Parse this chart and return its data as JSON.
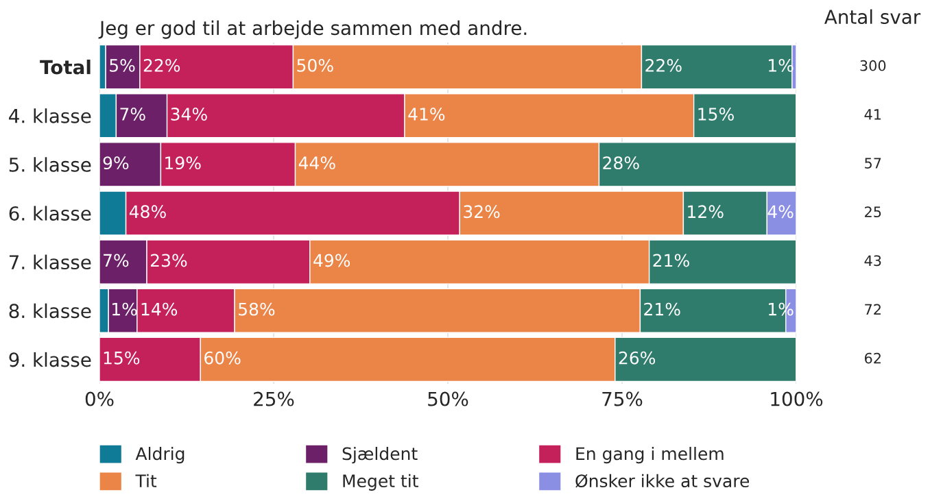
{
  "chart_data": {
    "type": "bar",
    "orientation": "horizontal",
    "stacked": true,
    "title": "Jeg er god til at arbejde sammen med andre.",
    "categories": [
      "Total",
      "4. klasse",
      "5. klasse",
      "6. klasse",
      "7. klasse",
      "8. klasse",
      "9. klasse"
    ],
    "series": [
      {
        "name": "Aldrig",
        "color": "#0f7b96",
        "values": [
          0.9,
          2.4,
          null,
          3.8,
          null,
          1.3,
          null
        ],
        "value_labels": [
          null,
          null,
          null,
          null,
          null,
          "1%",
          null
        ]
      },
      {
        "name": "Sjældent",
        "color": "#6b2067",
        "values": [
          4.9,
          7.3,
          8.8,
          null,
          6.8,
          4.1,
          null
        ],
        "value_labels": [
          "5%",
          "7%",
          "9%",
          null,
          "7%",
          null,
          null
        ]
      },
      {
        "name": "En gang i mellem",
        "color": "#c4205a",
        "values": [
          22,
          34.1,
          19.3,
          47.9,
          23.4,
          14,
          14.5
        ],
        "value_labels": [
          "22%",
          "34%",
          "19%",
          "48%",
          "23%",
          "14%",
          "15%"
        ]
      },
      {
        "name": "Tit",
        "color": "#eb8447",
        "values": [
          50,
          41.5,
          43.6,
          32.1,
          48.7,
          58.2,
          59.5
        ],
        "value_labels": [
          "50%",
          "41%",
          "44%",
          "32%",
          "49%",
          "58%",
          "60%"
        ]
      },
      {
        "name": "Meget tit",
        "color": "#2f7b6c",
        "values": [
          21.6,
          14.7,
          28.3,
          12,
          21.1,
          20.9,
          26
        ],
        "value_labels": [
          "22%",
          "15%",
          "28%",
          "12%",
          "21%",
          "21%",
          "26%"
        ]
      },
      {
        "name": "Ønsker ikke at svare",
        "color": "#8b8fe3",
        "values": [
          0.6,
          null,
          null,
          4.2,
          null,
          1.5,
          null
        ],
        "value_labels": [
          "1%",
          null,
          null,
          "4%",
          null,
          "1%",
          null
        ]
      }
    ],
    "xlim": [
      0,
      100
    ],
    "xticks": [
      {
        "value": 0,
        "label": "0%"
      },
      {
        "value": 25,
        "label": "25%"
      },
      {
        "value": 50,
        "label": "50%"
      },
      {
        "value": 75,
        "label": "75%"
      },
      {
        "value": 100,
        "label": "100%"
      }
    ],
    "grid": "x",
    "legend": "bottom",
    "annotations": [
      "Antal svar",
      "300",
      "41",
      "57",
      "25",
      "43",
      "72",
      "62"
    ]
  }
}
